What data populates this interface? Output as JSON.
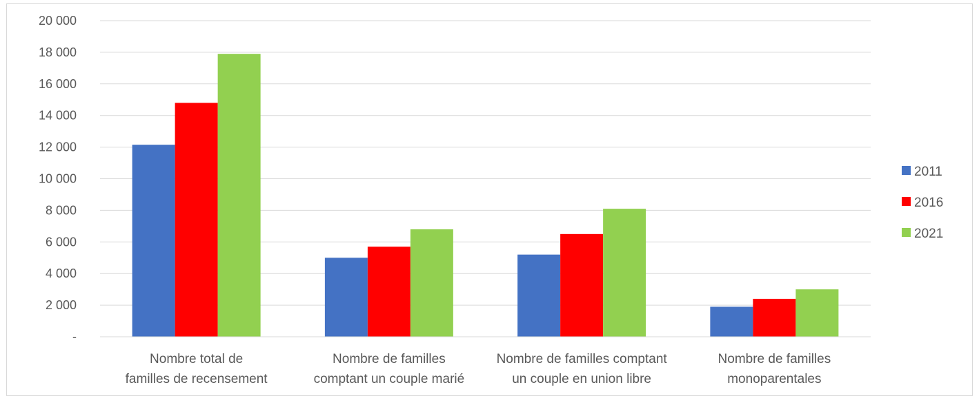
{
  "chart_data": {
    "type": "bar",
    "title": "",
    "xlabel": "",
    "ylabel": "",
    "ylim": [
      0,
      20000
    ],
    "ytick_values": [
      0,
      2000,
      4000,
      6000,
      8000,
      10000,
      12000,
      14000,
      16000,
      18000,
      20000
    ],
    "ytick_labels": [
      "-",
      "2 000",
      "4 000",
      "6 000",
      "8 000",
      "10 000",
      "12 000",
      "14 000",
      "16 000",
      "18 000",
      "20 000"
    ],
    "grid": true,
    "legend_position": "right",
    "categories": [
      [
        "Nombre total de",
        "familles de recensement"
      ],
      [
        "Nombre de familles",
        "comptant un couple marié"
      ],
      [
        "Nombre de familles comptant",
        "un couple en union libre"
      ],
      [
        "Nombre de familles",
        "monoparentales"
      ]
    ],
    "series": [
      {
        "name": "2011",
        "color": "#4472c4",
        "values": [
          12150,
          5000,
          5200,
          1900
        ]
      },
      {
        "name": "2016",
        "color": "#ff0000",
        "values": [
          14800,
          5700,
          6500,
          2400
        ]
      },
      {
        "name": "2021",
        "color": "#92d050",
        "values": [
          17900,
          6800,
          8100,
          3000
        ]
      }
    ]
  }
}
